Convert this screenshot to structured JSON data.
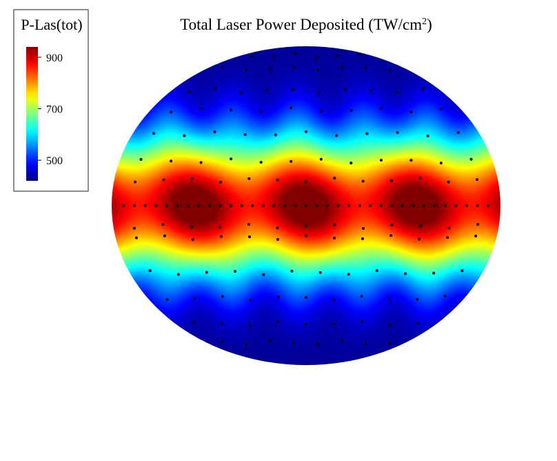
{
  "chart_data": {
    "type": "heatmap",
    "title": "Total Laser Power Deposited (TW/cm",
    "title_superscript": "2",
    "title_suffix": ")",
    "colorbar": {
      "title": "P-Las(tot)",
      "range": [
        420,
        940
      ],
      "ticks": [
        {
          "label": "900",
          "value": 900
        },
        {
          "label": "700",
          "value": 700
        },
        {
          "label": "500",
          "value": 500
        }
      ],
      "colormap": "jet"
    },
    "field": {
      "projection": "elliptical",
      "equator_max": 920,
      "pole_min": 430,
      "azimuthal_lobes": 7
    },
    "beam_markers": {
      "color": "#000000",
      "rows": [
        {
          "lat": 0.0,
          "count": 35
        },
        {
          "lat": 0.16,
          "count": 13
        },
        {
          "lat": -0.13,
          "count": 13
        },
        {
          "lat": -0.2,
          "count": 13
        },
        {
          "lat": 0.28,
          "count": 12
        },
        {
          "lat": -0.42,
          "count": 12
        },
        {
          "lat": 0.45,
          "count": 11
        },
        {
          "lat": -0.58,
          "count": 11
        },
        {
          "lat": 0.6,
          "count": 10
        },
        {
          "lat": 0.72,
          "count": 10
        },
        {
          "lat": -0.74,
          "count": 9
        },
        {
          "lat": 0.86,
          "count": 8
        },
        {
          "lat": -0.86,
          "count": 8
        },
        {
          "lat": 0.94,
          "count": 6
        }
      ]
    }
  }
}
